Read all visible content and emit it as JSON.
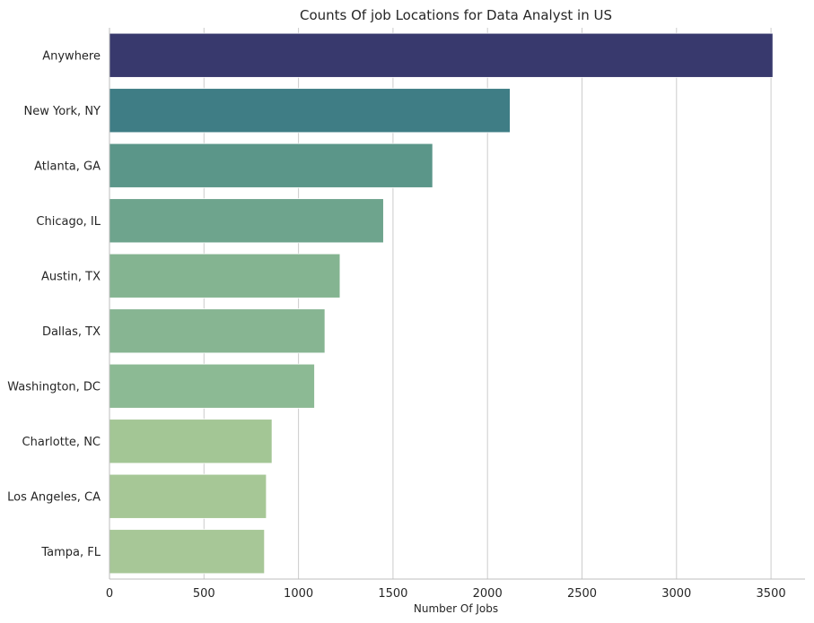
{
  "chart_data": {
    "type": "bar",
    "orientation": "horizontal",
    "title": "Counts Of job Locations for Data Analyst in US",
    "xlabel": "Number Of Jobs",
    "ylabel": "",
    "xlim": [
      0,
      3680
    ],
    "xticks": [
      0,
      500,
      1000,
      1500,
      2000,
      2500,
      3000,
      3500
    ],
    "grid": "vertical",
    "categories": [
      "Anywhere",
      "New York, NY",
      "Atlanta, GA",
      "Chicago, IL",
      "Austin, TX",
      "Dallas, TX",
      "Washington, DC",
      "Charlotte, NC",
      "Los Angeles, CA",
      "Tampa, FL"
    ],
    "values": [
      3510,
      2120,
      1710,
      1450,
      1220,
      1140,
      1085,
      860,
      830,
      820
    ],
    "colors": [
      "#38396d",
      "#3f7d85",
      "#5b9689",
      "#6ea48d",
      "#84b491",
      "#87b592",
      "#8cba94",
      "#a3c695",
      "#a6c796",
      "#a7c797"
    ]
  }
}
